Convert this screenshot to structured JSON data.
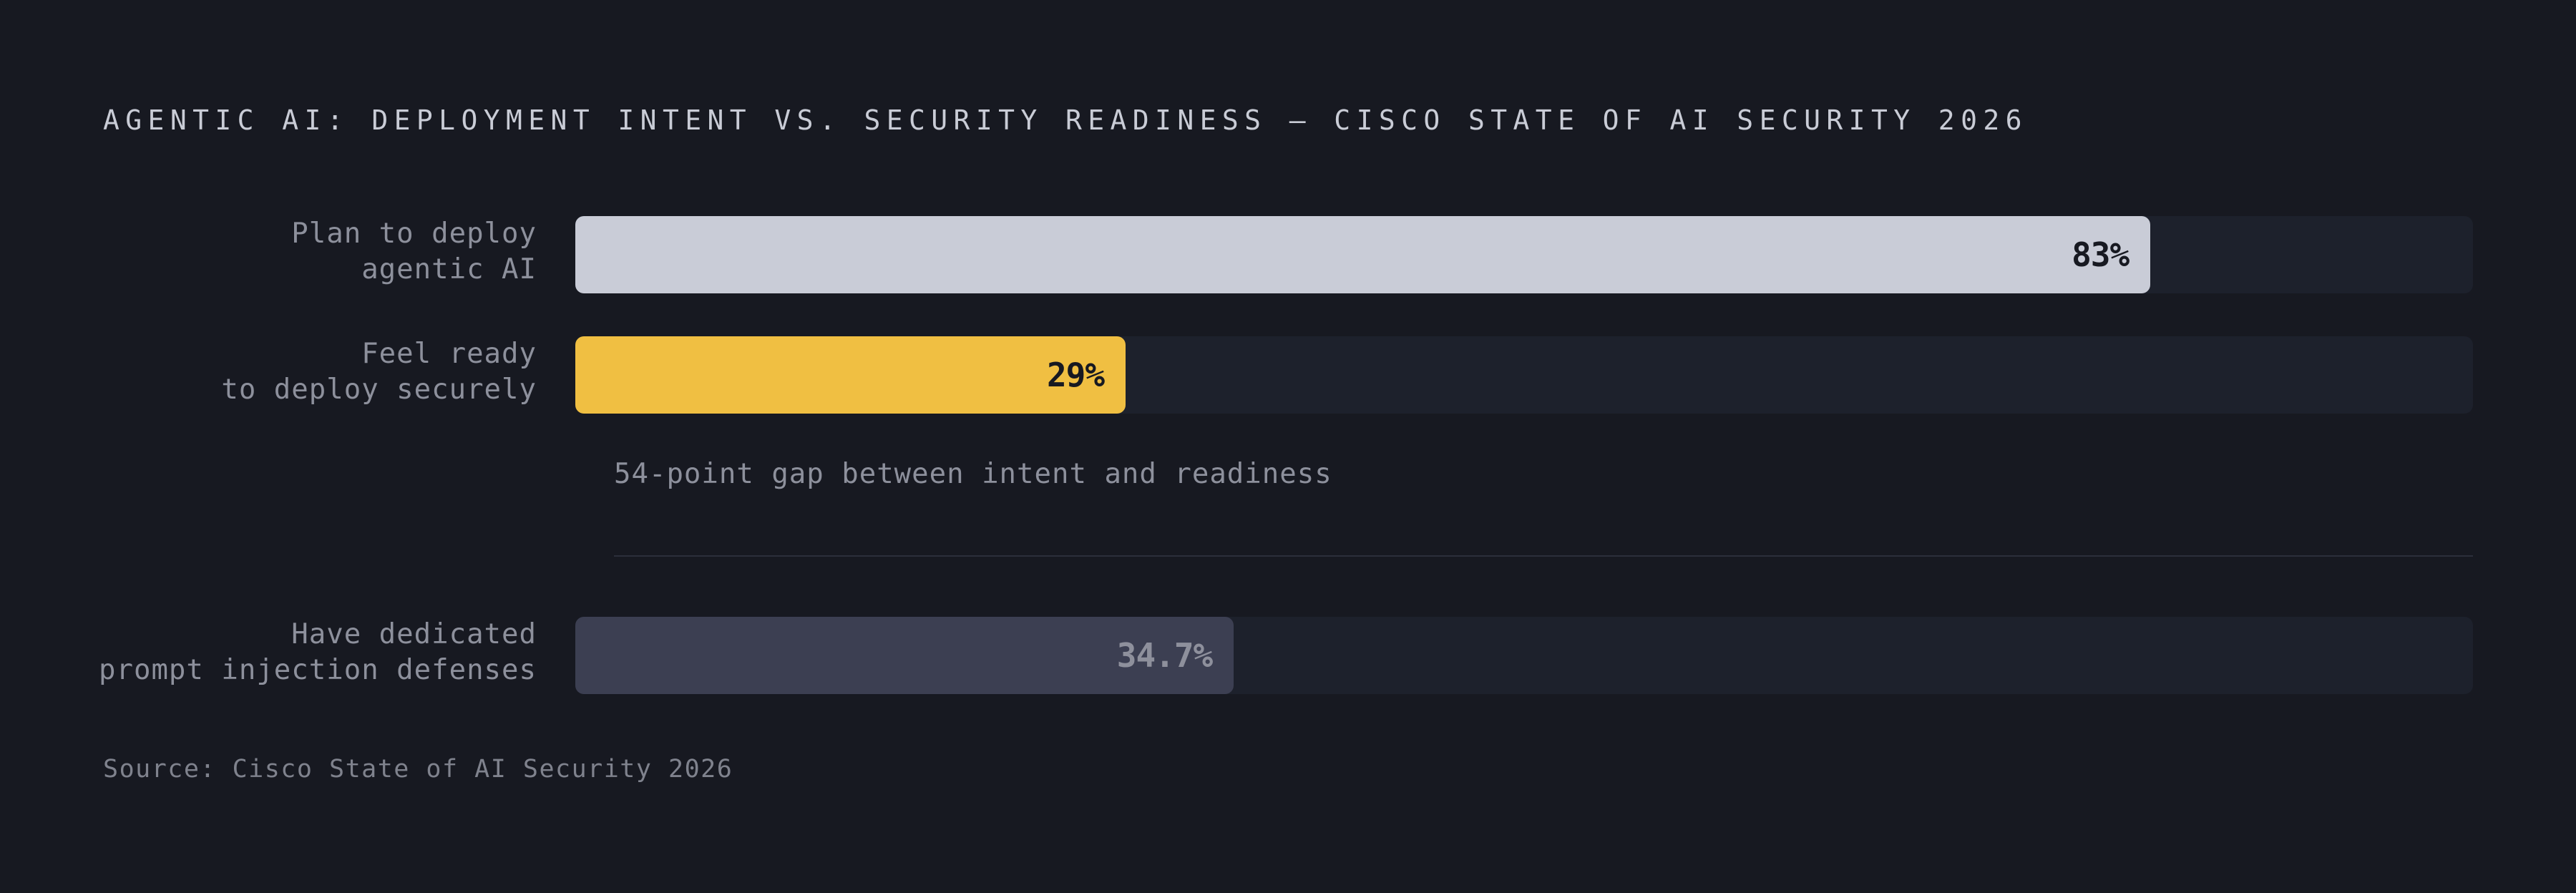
{
  "title": "AGENTIC AI: DEPLOYMENT INTENT VS. SECURITY READINESS — CISCO STATE OF AI SECURITY 2026",
  "annotation": "54-point gap between intent and readiness",
  "source": "Source: Cisco State of AI Security 2026",
  "colors": {
    "background": "#171921",
    "track": "#1d212c",
    "intent_bar": "#c9ccd7",
    "readiness_bar": "#f0bf42",
    "defense_bar": "#3c3f52",
    "dark_value_text": "#171921",
    "muted_value_text": "#8e909c"
  },
  "chart_data": {
    "type": "bar",
    "orientation": "horizontal",
    "xlim": [
      0,
      100
    ],
    "bars": [
      {
        "label_lines": [
          "Plan to deploy",
          "agentic AI"
        ],
        "value": 83,
        "value_label": "83%",
        "color": "#c9ccd7",
        "value_color": "#171921"
      },
      {
        "label_lines": [
          "Feel ready",
          "to deploy securely"
        ],
        "value": 29,
        "value_label": "29%",
        "color": "#f0bf42",
        "value_color": "#171921"
      },
      {
        "label_lines": [
          "Have dedicated",
          "prompt injection defenses"
        ],
        "value": 34.7,
        "value_label": "34.7%",
        "color": "#3c3f52",
        "value_color": "#8e909c"
      }
    ],
    "annotation": "54-point gap between intent and readiness"
  }
}
